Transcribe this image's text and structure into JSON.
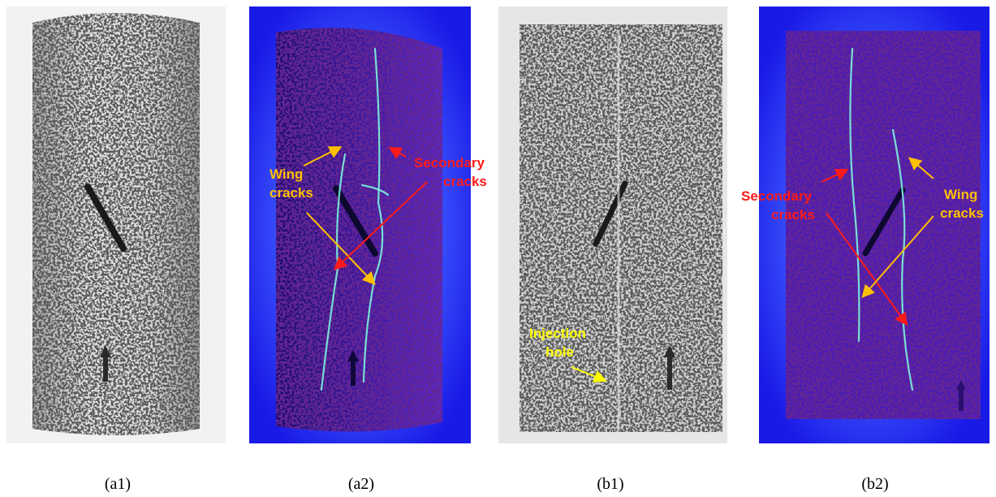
{
  "panels": [
    {
      "caption": "(a1)"
    },
    {
      "caption": "(a2)",
      "annotations": [
        {
          "lines": [
            "Wing",
            "cracks"
          ]
        },
        {
          "lines": [
            "Secondary",
            "cracks"
          ]
        }
      ]
    },
    {
      "caption": "(b1)",
      "annotations": [
        {
          "lines": [
            "Injection",
            "hole"
          ]
        }
      ]
    },
    {
      "caption": "(b2)",
      "annotations": [
        {
          "lines": [
            "Secondary",
            "cracks"
          ]
        },
        {
          "lines": [
            "Wing",
            "cracks"
          ]
        }
      ]
    }
  ]
}
